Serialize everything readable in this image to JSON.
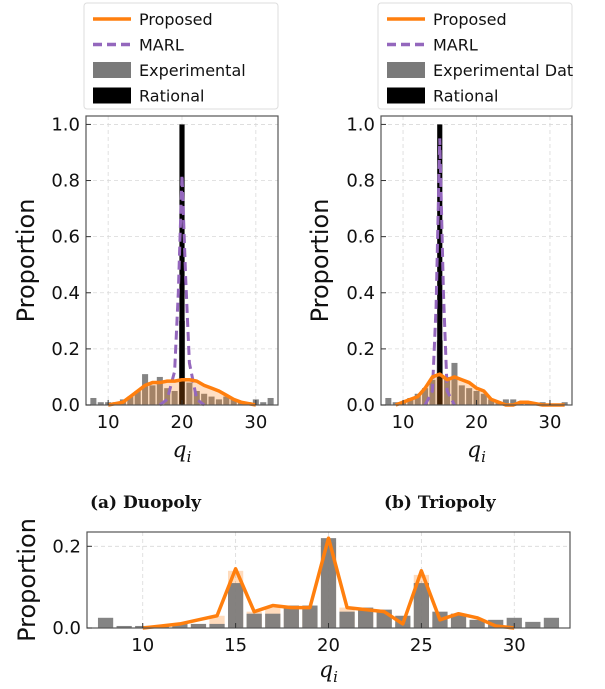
{
  "captions": {
    "a": "(a) Duopoly",
    "b": "(b) Triopoly"
  },
  "colors": {
    "proposed": "#ff7f0e",
    "marl": "#9467bd",
    "experimental": "#7a7a7a",
    "rational": "#000000",
    "grid": "#d9d9d9"
  },
  "chart_data": [
    {
      "id": "duopoly",
      "type": "bar",
      "xlabel": "q_i",
      "ylabel": "Proportion",
      "xlim": [
        7,
        33
      ],
      "ylim": [
        0,
        1.03
      ],
      "xticks": [
        10,
        20,
        30
      ],
      "yticks": [
        0.0,
        0.2,
        0.4,
        0.6,
        0.8,
        1.0
      ],
      "grid": true,
      "legend": {
        "placement": "top-center-outside",
        "entries": [
          "Proposed",
          "MARL",
          "Experimental",
          "Rational"
        ]
      },
      "experimental": {
        "x": [
          8,
          9,
          10,
          11,
          12,
          13,
          14,
          15,
          16,
          17,
          18,
          19,
          20,
          21,
          22,
          23,
          24,
          25,
          26,
          27,
          28,
          29,
          30,
          31,
          32
        ],
        "values": [
          0.025,
          0.01,
          0.01,
          0.01,
          0.02,
          0.03,
          0.05,
          0.11,
          0.07,
          0.1,
          0.06,
          0.05,
          0.3,
          0.08,
          0.05,
          0.04,
          0.03,
          0.02,
          0.03,
          0.02,
          0.01,
          0.01,
          0.02,
          0.01,
          0.025
        ]
      },
      "rational": {
        "x": [
          20
        ],
        "values": [
          1.0
        ]
      },
      "marl": {
        "x": [
          17,
          18,
          19,
          19.5,
          20,
          20.5,
          21,
          22,
          23
        ],
        "values": [
          0.0,
          0.02,
          0.12,
          0.4,
          0.82,
          0.45,
          0.15,
          0.02,
          0.0
        ]
      },
      "proposed": {
        "x": [
          10,
          12,
          13,
          14,
          15,
          16,
          17,
          18,
          19,
          20,
          21,
          22,
          23,
          24,
          25,
          26,
          27,
          28,
          29,
          30
        ],
        "values": [
          0.0,
          0.01,
          0.03,
          0.05,
          0.07,
          0.08,
          0.08,
          0.085,
          0.085,
          0.09,
          0.09,
          0.085,
          0.07,
          0.06,
          0.05,
          0.035,
          0.02,
          0.01,
          0.005,
          0.0
        ]
      }
    },
    {
      "id": "triopoly",
      "type": "bar",
      "xlabel": "q_i",
      "ylabel": "Proportion",
      "xlim": [
        7,
        33
      ],
      "ylim": [
        0,
        1.03
      ],
      "xticks": [
        10,
        20,
        30
      ],
      "yticks": [
        0.0,
        0.2,
        0.4,
        0.6,
        0.8,
        1.0
      ],
      "grid": true,
      "legend": {
        "placement": "top-center-outside",
        "entries": [
          "Proposed",
          "MARL",
          "Experimental Dat",
          "Rational"
        ]
      },
      "experimental": {
        "x": [
          8,
          9,
          10,
          11,
          12,
          13,
          14,
          15,
          16,
          17,
          18,
          19,
          20,
          21,
          22,
          23,
          24,
          25,
          26,
          27,
          28,
          29,
          30,
          31,
          32
        ],
        "values": [
          0.025,
          0.01,
          0.01,
          0.025,
          0.04,
          0.06,
          0.09,
          0.23,
          0.1,
          0.15,
          0.07,
          0.06,
          0.05,
          0.04,
          0.02,
          0.01,
          0.02,
          0.02,
          0.01,
          0.01,
          0.005,
          0.01,
          0.005,
          0.005,
          0.01
        ]
      },
      "rational": {
        "x": [
          15
        ],
        "values": [
          1.0
        ]
      },
      "marl": {
        "x": [
          13,
          14,
          14.5,
          15,
          15.5,
          16,
          17
        ],
        "values": [
          0.0,
          0.05,
          0.35,
          0.95,
          0.4,
          0.05,
          0.0
        ]
      },
      "proposed": {
        "x": [
          9,
          10,
          11,
          12,
          13,
          14,
          15,
          16,
          17,
          18,
          19,
          20,
          21,
          22,
          23,
          24,
          25,
          26,
          27,
          28,
          29,
          30,
          31,
          32
        ],
        "values": [
          0.0,
          0.01,
          0.02,
          0.03,
          0.06,
          0.1,
          0.11,
          0.09,
          0.1,
          0.09,
          0.08,
          0.06,
          0.05,
          0.02,
          0.01,
          0.0,
          0.0,
          0.01,
          0.01,
          0.005,
          0.0,
          0.0,
          0.0,
          0.0
        ]
      }
    },
    {
      "id": "combined",
      "type": "bar",
      "xlabel": "q_i",
      "ylabel": "Proportion",
      "xlim": [
        7,
        33
      ],
      "ylim": [
        0,
        0.235
      ],
      "xticks": [
        10,
        15,
        20,
        25,
        30
      ],
      "yticks": [
        0.0,
        0.2
      ],
      "grid": true,
      "experimental": {
        "x": [
          8,
          9,
          10,
          11,
          12,
          13,
          14,
          15,
          16,
          17,
          18,
          19,
          20,
          21,
          22,
          23,
          24,
          25,
          26,
          27,
          28,
          29,
          30,
          31,
          32
        ],
        "values": [
          0.025,
          0.005,
          0.005,
          0.005,
          0.01,
          0.01,
          0.01,
          0.11,
          0.035,
          0.035,
          0.055,
          0.055,
          0.22,
          0.04,
          0.05,
          0.045,
          0.03,
          0.11,
          0.04,
          0.035,
          0.02,
          0.02,
          0.025,
          0.015,
          0.025
        ]
      },
      "proposed": {
        "x": [
          10,
          11,
          12,
          13,
          14,
          15,
          16,
          17,
          18,
          19,
          20,
          21,
          22,
          23,
          24,
          25,
          26,
          27,
          28,
          29,
          30
        ],
        "values": [
          0.0,
          0.005,
          0.01,
          0.02,
          0.03,
          0.145,
          0.04,
          0.055,
          0.05,
          0.05,
          0.22,
          0.05,
          0.045,
          0.04,
          0.01,
          0.14,
          0.02,
          0.035,
          0.025,
          0.005,
          0.0
        ]
      },
      "proposed_fill": {
        "x": [
          13,
          14,
          15,
          16,
          17,
          18,
          19,
          20,
          21,
          22,
          23,
          24,
          25,
          26,
          27,
          28
        ],
        "values": [
          0.01,
          0.03,
          0.14,
          0.04,
          0.05,
          0.05,
          0.05,
          0.21,
          0.05,
          0.045,
          0.04,
          0.01,
          0.13,
          0.02,
          0.035,
          0.02
        ]
      }
    }
  ]
}
